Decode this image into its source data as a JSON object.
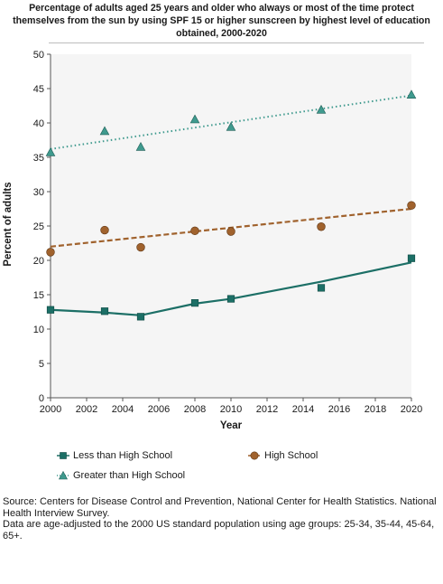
{
  "chart_data": {
    "type": "scatter",
    "title": "Percentage of adults aged 25 years and older who always or most of the time protect themselves from the sun by using SPF 15 or higher sunscreen by highest level of education obtained, 2000-2020",
    "xlabel": "Year",
    "ylabel": "Percent of adults",
    "xlim": [
      2000,
      2020
    ],
    "ylim": [
      0,
      50
    ],
    "x_ticks": [
      2000,
      2002,
      2004,
      2006,
      2008,
      2010,
      2012,
      2014,
      2016,
      2018,
      2020
    ],
    "y_ticks": [
      0,
      5,
      10,
      15,
      20,
      25,
      30,
      35,
      40,
      45,
      50
    ],
    "grid": false,
    "legend_position": "bottom",
    "series": [
      {
        "name": "Less than High School",
        "marker": "square",
        "color": "#1c6f66",
        "x": [
          2000,
          2003,
          2005,
          2008,
          2010,
          2015,
          2020
        ],
        "y": [
          12.8,
          12.6,
          11.8,
          13.8,
          14.4,
          16.0,
          20.3
        ],
        "trend": {
          "style": "solid",
          "x": [
            2000,
            2003,
            2005,
            2008,
            2010,
            2015,
            2020
          ],
          "y": [
            12.8,
            12.4,
            12.0,
            13.7,
            14.4,
            16.9,
            19.7
          ]
        }
      },
      {
        "name": "High School",
        "marker": "circle",
        "color": "#a0622d",
        "x": [
          2000,
          2003,
          2005,
          2008,
          2010,
          2015,
          2020
        ],
        "y": [
          21.2,
          24.4,
          21.9,
          24.3,
          24.2,
          24.9,
          28.0
        ],
        "trend": {
          "style": "dashed",
          "x": [
            2000,
            2020
          ],
          "y": [
            22.0,
            27.5
          ]
        }
      },
      {
        "name": "Greater than High School",
        "marker": "triangle",
        "color": "#3f9a8e",
        "x": [
          2000,
          2003,
          2005,
          2008,
          2010,
          2015,
          2020
        ],
        "y": [
          35.7,
          38.8,
          36.5,
          40.5,
          39.4,
          41.9,
          44.1
        ],
        "trend": {
          "style": "dotted",
          "x": [
            2000,
            2020
          ],
          "y": [
            36.2,
            44.0
          ]
        }
      }
    ]
  },
  "source_note": [
    "Source: Centers for Disease Control and Prevention, National Center for Health Statistics. National Health Interview Survey.",
    "Data are age-adjusted to the 2000 US standard population using age groups: 25-34, 35-44, 45-64, 65+."
  ]
}
